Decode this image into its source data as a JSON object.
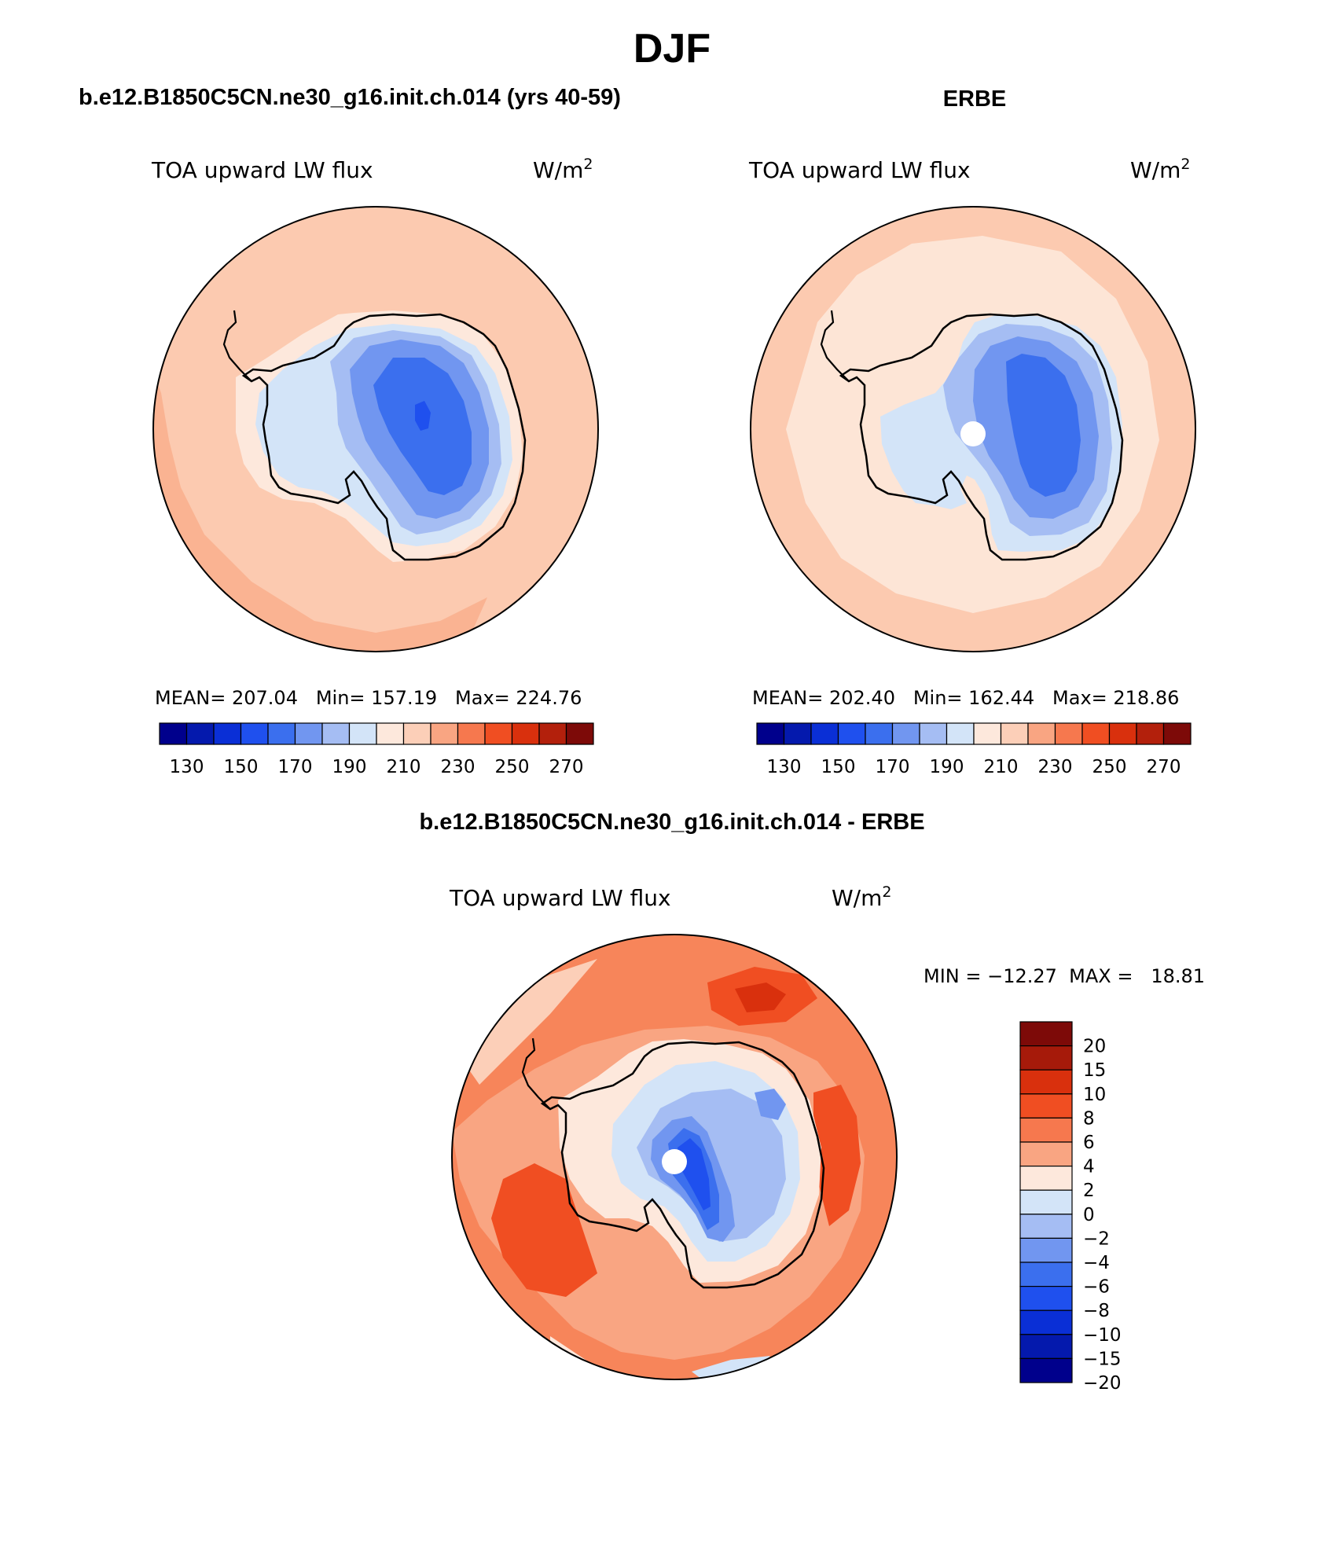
{
  "figure": {
    "title": "DJF",
    "top_left_title": "b.e12.B1850C5CN.ne30_g16.init.ch.014 (yrs 40-59)",
    "top_right_title": "ERBE",
    "bottom_title": "b.e12.B1850C5CN.ne30_g16.init.ch.014 - ERBE"
  },
  "panels": {
    "model": {
      "variable": "TOA upward LW flux",
      "units": "W/m",
      "units_exp": "2",
      "stats": "MEAN= 207.04   Min= 157.19   Max= 224.76"
    },
    "obs": {
      "variable": "TOA upward LW flux",
      "units": "W/m",
      "units_exp": "2",
      "stats": "MEAN= 202.40   Min= 162.44   Max= 218.86"
    },
    "diff": {
      "variable": "TOA upward LW flux",
      "units": "W/m",
      "units_exp": "2",
      "stats": "MIN = −12.27  MAX =   18.81"
    }
  },
  "colorbar_abs": {
    "colors": [
      "#00008c",
      "#0419ad",
      "#0a2fd6",
      "#1f50ee",
      "#3b6fee",
      "#7196f0",
      "#a5bdf3",
      "#d3e4f8",
      "#fde8dc",
      "#fccfb8",
      "#f9a582",
      "#f6784e",
      "#f04e22",
      "#d9300d",
      "#b3200c",
      "#7d0a08"
    ],
    "labels": [
      "130",
      "150",
      "170",
      "190",
      "210",
      "230",
      "250",
      "270"
    ]
  },
  "colorbar_diff": {
    "colors": [
      "#7d0a08",
      "#a61a0a",
      "#d9300d",
      "#f04e22",
      "#f6784e",
      "#f9a582",
      "#fde8dc",
      "#d3e4f8",
      "#a5bdf3",
      "#7196f0",
      "#3b6fee",
      "#1f50ee",
      "#0a2fd6",
      "#0419ad",
      "#00008c"
    ],
    "labels": [
      "20",
      "15",
      "10",
      "8",
      "6",
      "4",
      "2",
      "0",
      "−2",
      "−4",
      "−6",
      "−8",
      "−10",
      "−15",
      "−20"
    ]
  },
  "colors": {
    "model_ocean": "#fccab0",
    "obs_ocean": "#fde5d6",
    "diff_ocean": "#f7855a"
  }
}
